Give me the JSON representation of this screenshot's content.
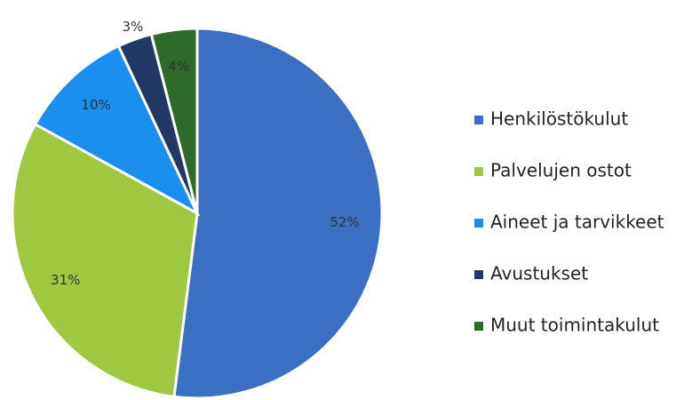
{
  "chart_data": {
    "type": "pie",
    "categories": [
      "Henkilöstökulut",
      "Palvelujen ostot",
      "Aineet ja tarvikkeet",
      "Avustukset",
      "Muut toimintakulut"
    ],
    "values": [
      52,
      31,
      10,
      3,
      4
    ],
    "value_labels": [
      "52%",
      "31%",
      "10%",
      "3%",
      "4%"
    ],
    "colors": [
      "#3a6fc4",
      "#9dc83f",
      "#1a8ff0",
      "#1f3864",
      "#2e6b2a"
    ],
    "legend": "right"
  }
}
